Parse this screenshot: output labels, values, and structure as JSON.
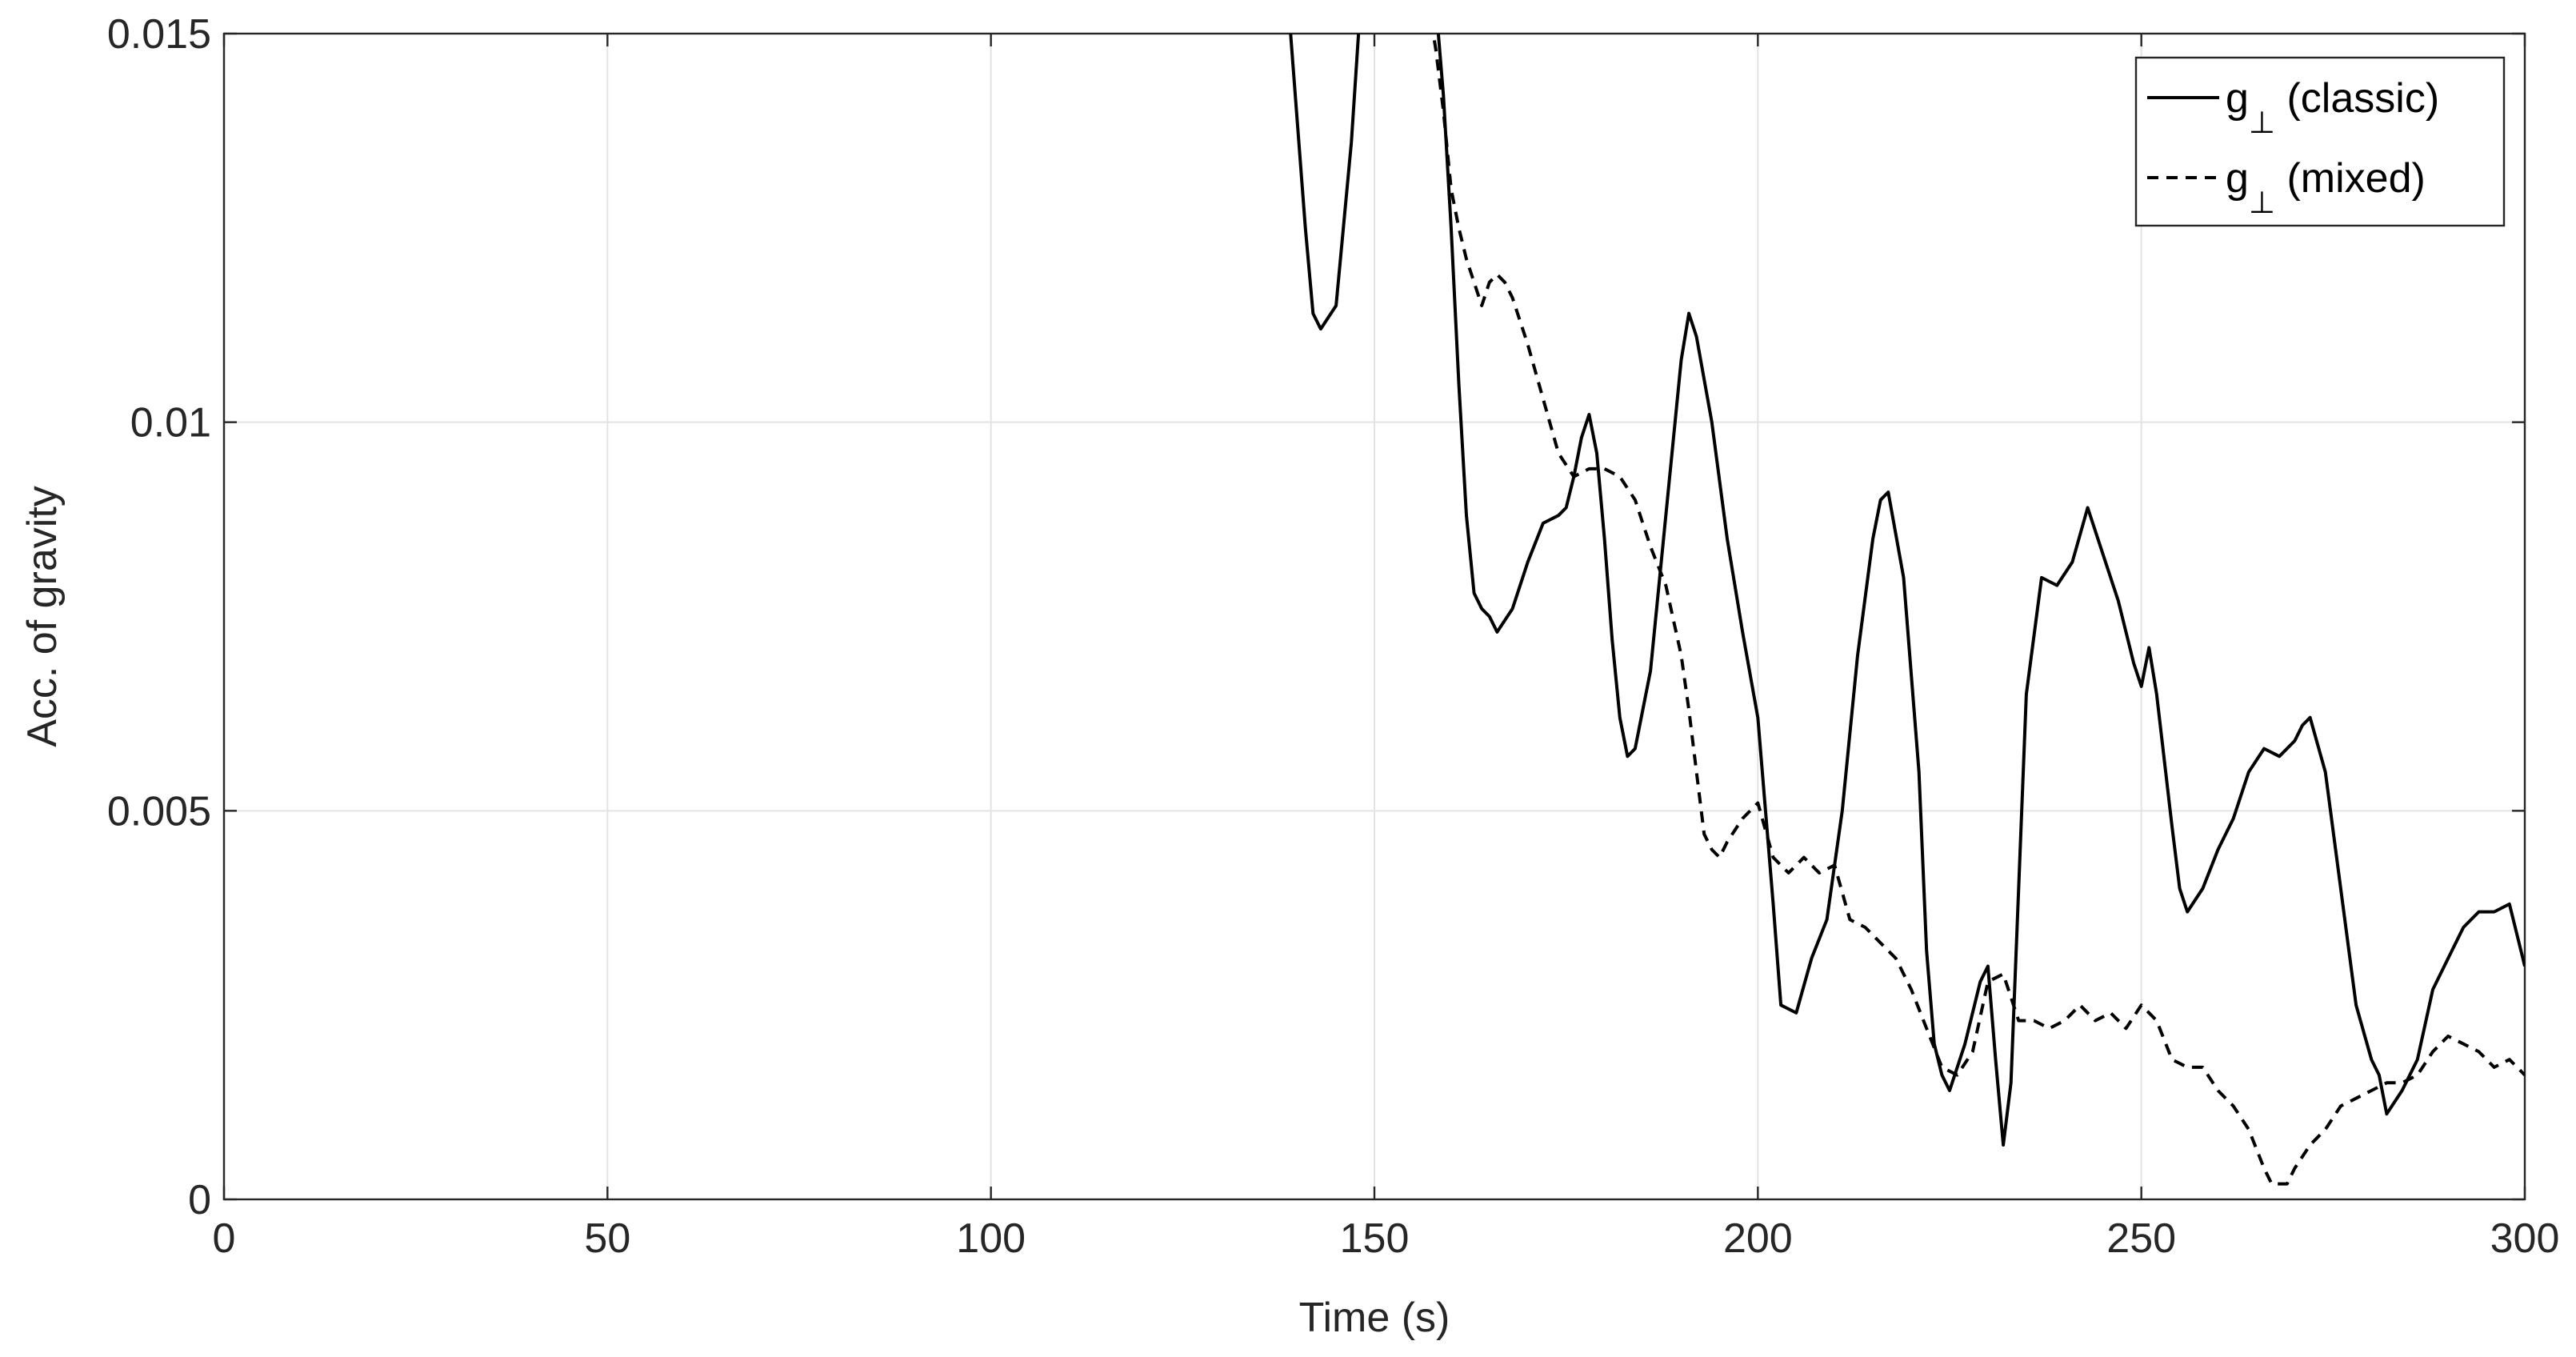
{
  "chart_data": {
    "type": "line",
    "title": "",
    "xlabel": "Time (s)",
    "ylabel": "Acc. of gravity",
    "xlim": [
      0,
      300
    ],
    "ylim": [
      0,
      0.015
    ],
    "xticks": [
      0,
      50,
      100,
      150,
      200,
      250,
      300
    ],
    "xtick_labels": [
      "0",
      "50",
      "100",
      "150",
      "200",
      "250",
      "300"
    ],
    "yticks": [
      0,
      0.005,
      0.01,
      0.015
    ],
    "ytick_labels": [
      "0",
      "0.005",
      "0.01",
      "0.015"
    ],
    "grid": true,
    "legend_position": "top-right",
    "series": [
      {
        "name": "g⊥ (classic)",
        "legend_base": "g",
        "legend_sub": "⊥",
        "legend_rest": " (classic)",
        "style": "solid",
        "color": "#000000",
        "x": [
          139,
          141,
          142,
          143,
          145,
          147,
          148,
          150,
          152,
          155,
          157,
          158,
          159,
          160,
          161,
          162,
          163,
          164,
          165,
          166,
          168,
          170,
          172,
          174,
          175,
          176,
          177,
          178,
          179,
          180,
          181,
          182,
          183,
          184,
          186,
          188,
          190,
          191,
          192,
          194,
          196,
          198,
          200,
          201,
          202,
          203,
          205,
          207,
          209,
          211,
          213,
          215,
          216,
          217,
          219,
          221,
          222,
          223,
          224,
          225,
          227,
          229,
          230,
          231,
          232,
          233,
          234,
          235,
          237,
          239,
          241,
          243,
          245,
          247,
          249,
          250,
          251,
          252,
          254,
          255,
          256,
          258,
          260,
          262,
          264,
          266,
          268,
          270,
          271,
          272,
          274,
          276,
          278,
          280,
          281,
          282,
          284,
          286,
          288,
          290,
          292,
          294,
          296,
          298,
          299,
          300
        ],
        "y": [
          0.0151,
          0.0125,
          0.0114,
          0.0112,
          0.0115,
          0.0136,
          0.0151,
          0.0158,
          0.0158,
          0.0158,
          0.0158,
          0.0154,
          0.0142,
          0.0125,
          0.0105,
          0.0088,
          0.0078,
          0.0076,
          0.0075,
          0.0073,
          0.0076,
          0.0082,
          0.0087,
          0.0088,
          0.0089,
          0.0093,
          0.0098,
          0.0101,
          0.0096,
          0.0085,
          0.0072,
          0.0062,
          0.0057,
          0.0058,
          0.0068,
          0.0088,
          0.0108,
          0.0114,
          0.0111,
          0.01,
          0.0085,
          0.0073,
          0.0062,
          0.005,
          0.0038,
          0.0025,
          0.0024,
          0.0031,
          0.0036,
          0.005,
          0.007,
          0.0085,
          0.009,
          0.0091,
          0.008,
          0.0055,
          0.0032,
          0.002,
          0.0016,
          0.0014,
          0.002,
          0.0028,
          0.003,
          0.0018,
          0.0007,
          0.0015,
          0.004,
          0.0065,
          0.008,
          0.0079,
          0.0082,
          0.0089,
          0.0083,
          0.0077,
          0.0069,
          0.0066,
          0.0071,
          0.0065,
          0.0048,
          0.004,
          0.0037,
          0.004,
          0.0045,
          0.0049,
          0.0055,
          0.0058,
          0.0057,
          0.0059,
          0.0061,
          0.0062,
          0.0055,
          0.004,
          0.0025,
          0.0018,
          0.0016,
          0.0011,
          0.0014,
          0.0018,
          0.0027,
          0.0031,
          0.0035,
          0.0037,
          0.0037,
          0.0038,
          0.0034,
          0.003
        ]
      },
      {
        "name": "g⊥ (mixed)",
        "legend_base": "g",
        "legend_sub": "⊥",
        "legend_rest": " (mixed)",
        "style": "dashed",
        "color": "#000000",
        "x": [
          152,
          155,
          157,
          158,
          159,
          160,
          161,
          162,
          163,
          164,
          165,
          166,
          167,
          168,
          170,
          172,
          174,
          176,
          178,
          180,
          182,
          184,
          186,
          188,
          190,
          191,
          192,
          193,
          194,
          195,
          196,
          198,
          200,
          202,
          204,
          206,
          208,
          210,
          212,
          214,
          216,
          218,
          220,
          222,
          224,
          226,
          228,
          230,
          232,
          234,
          236,
          238,
          240,
          242,
          244,
          246,
          248,
          250,
          252,
          254,
          256,
          258,
          260,
          262,
          264,
          266,
          267,
          268,
          269,
          270,
          272,
          274,
          276,
          278,
          280,
          282,
          284,
          286,
          288,
          290,
          292,
          294,
          296,
          298,
          300
        ],
        "y": [
          0.0158,
          0.0158,
          0.0154,
          0.0148,
          0.014,
          0.013,
          0.0125,
          0.0121,
          0.0118,
          0.0115,
          0.0118,
          0.0119,
          0.0118,
          0.0116,
          0.011,
          0.0103,
          0.0096,
          0.0093,
          0.0094,
          0.0094,
          0.0093,
          0.009,
          0.0084,
          0.0079,
          0.007,
          0.0063,
          0.0055,
          0.0047,
          0.0045,
          0.0044,
          0.0046,
          0.0049,
          0.0051,
          0.0044,
          0.0042,
          0.0044,
          0.0042,
          0.0043,
          0.0036,
          0.0035,
          0.0033,
          0.0031,
          0.0027,
          0.0022,
          0.0017,
          0.0016,
          0.0019,
          0.0028,
          0.0029,
          0.0023,
          0.0023,
          0.0022,
          0.0023,
          0.0025,
          0.0023,
          0.0024,
          0.0022,
          0.0025,
          0.0023,
          0.0018,
          0.0017,
          0.0017,
          0.0014,
          0.0012,
          0.0009,
          0.0004,
          0.0002,
          0.0002,
          0.0002,
          0.0004,
          0.0007,
          0.0009,
          0.0012,
          0.0013,
          0.0014,
          0.0015,
          0.0015,
          0.0016,
          0.0019,
          0.0021,
          0.002,
          0.0019,
          0.0017,
          0.0018,
          0.0016
        ]
      }
    ]
  }
}
